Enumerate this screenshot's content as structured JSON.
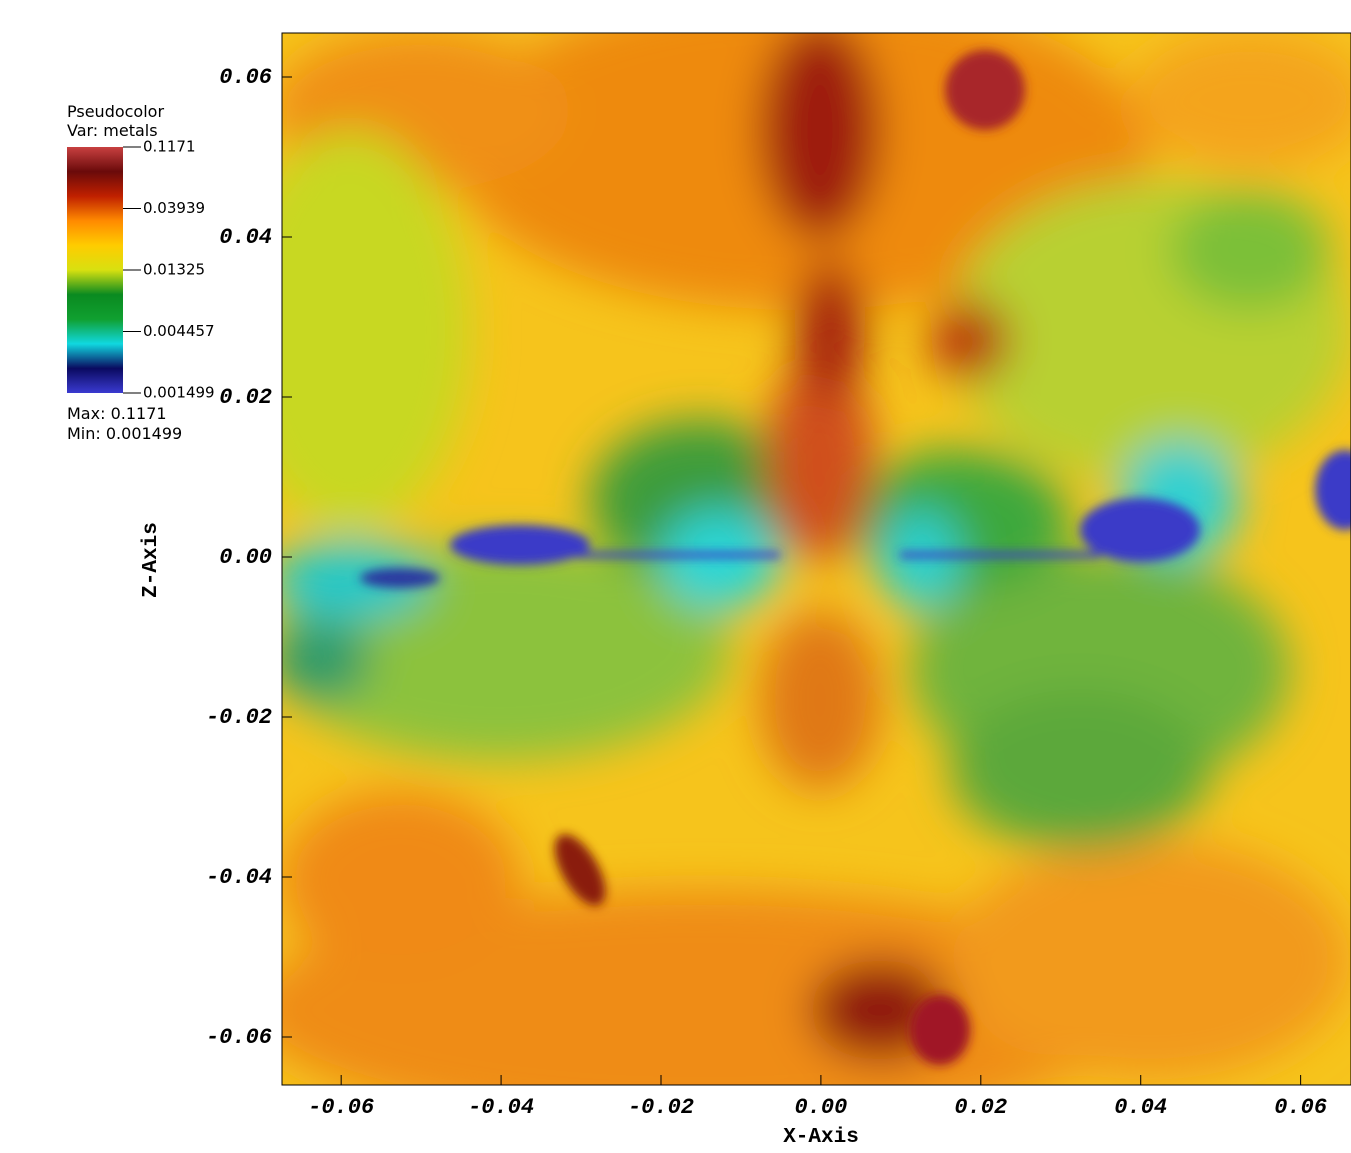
{
  "chart_data": {
    "type": "pseudocolor",
    "x_label": "X-Axis",
    "y_label": "Z-Axis",
    "xlim": [
      -0.0674,
      0.0663
    ],
    "ylim": [
      -0.066,
      0.0655
    ],
    "xticks": [
      -0.06,
      -0.04,
      -0.02,
      {
        "value": 0,
        "label": "0.00"
      },
      0.02,
      0.04,
      0.06
    ],
    "yticks": [
      -0.06,
      -0.04,
      -0.02,
      {
        "value": 0,
        "label": "0.00"
      },
      0.02,
      0.04,
      0.06
    ],
    "legend": {
      "title": "Pseudocolor",
      "variable": "Var: metals",
      "scale": "log",
      "ticks": [
        0.001499,
        0.004457,
        0.01325,
        0.03939,
        0.1171
      ],
      "max_label": "Max:",
      "max": 0.1171,
      "min_label": "Min:",
      "min": 0.001499,
      "colors": [
        "#3a3ad0",
        "#0a0a60",
        "#10d8e0",
        "#10a030",
        "#0a8a20",
        "#d8e010",
        "#ffcc00",
        "#ff8a00",
        "#c02000",
        "#6a0a0a",
        "#c84040"
      ]
    }
  }
}
